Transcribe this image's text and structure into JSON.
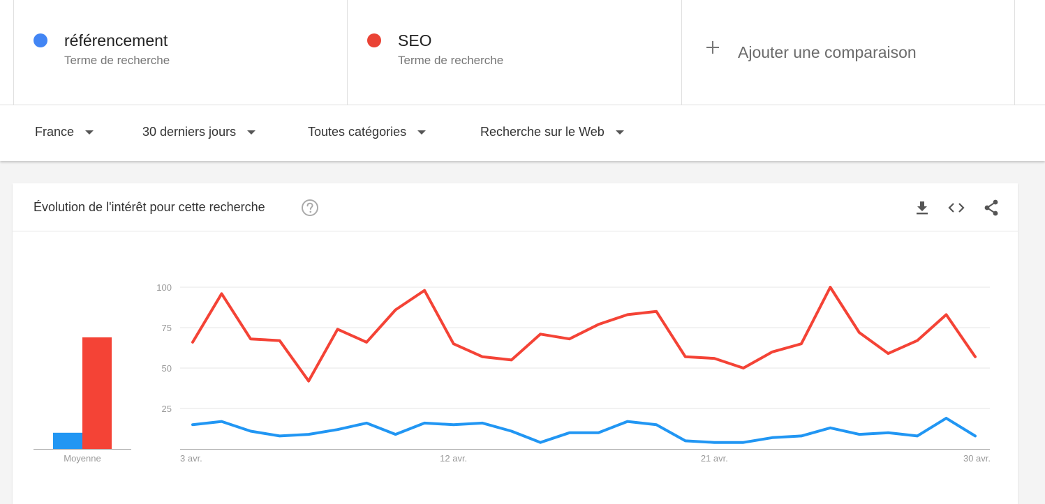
{
  "terms": [
    {
      "name": "référencement",
      "subtitle": "Terme de recherche",
      "color": "#4285f4"
    },
    {
      "name": "SEO",
      "subtitle": "Terme de recherche",
      "color": "#ea4335"
    }
  ],
  "add_comparison_label": "Ajouter une comparaison",
  "filters": {
    "region": "France",
    "period": "30 derniers jours",
    "category": "Toutes catégories",
    "search_type": "Recherche sur le Web"
  },
  "card": {
    "title": "Évolution de l'intérêt pour cette recherche",
    "icons": [
      "help-icon",
      "download-icon",
      "embed-icon",
      "share-icon"
    ]
  },
  "chart_data": [
    {
      "type": "bar",
      "categories": [
        "Moyenne"
      ],
      "series": [
        {
          "name": "référencement",
          "values": [
            10
          ],
          "color": "#2196f3"
        },
        {
          "name": "SEO",
          "values": [
            69
          ],
          "color": "#f44336"
        }
      ],
      "xlabel": "Moyenne",
      "ylim": [
        0,
        100
      ]
    },
    {
      "type": "line",
      "x": [
        "3 avr.",
        "4 avr.",
        "5 avr.",
        "6 avr.",
        "7 avr.",
        "8 avr.",
        "9 avr.",
        "10 avr.",
        "11 avr.",
        "12 avr.",
        "13 avr.",
        "14 avr.",
        "15 avr.",
        "16 avr.",
        "17 avr.",
        "18 avr.",
        "19 avr.",
        "20 avr.",
        "21 avr.",
        "22 avr.",
        "23 avr.",
        "24 avr.",
        "25 avr.",
        "26 avr.",
        "27 avr.",
        "28 avr.",
        "29 avr.",
        "30 avr."
      ],
      "x_tick_labels": [
        "3 avr.",
        "12 avr.",
        "21 avr.",
        "30 avr."
      ],
      "y_ticks": [
        25,
        50,
        75,
        100
      ],
      "ylim": [
        0,
        100
      ],
      "grid": true,
      "series": [
        {
          "name": "SEO",
          "color": "#f44336",
          "values": [
            66,
            96,
            68,
            67,
            42,
            74,
            66,
            86,
            98,
            65,
            57,
            55,
            71,
            68,
            77,
            83,
            85,
            57,
            56,
            50,
            60,
            65,
            100,
            72,
            59,
            67,
            83,
            57
          ]
        },
        {
          "name": "référencement",
          "color": "#2196f3",
          "values": [
            15,
            17,
            11,
            8,
            9,
            12,
            16,
            9,
            16,
            15,
            16,
            11,
            4,
            10,
            10,
            17,
            15,
            5,
            4,
            4,
            7,
            8,
            13,
            9,
            10,
            8,
            19,
            8
          ]
        }
      ]
    }
  ]
}
